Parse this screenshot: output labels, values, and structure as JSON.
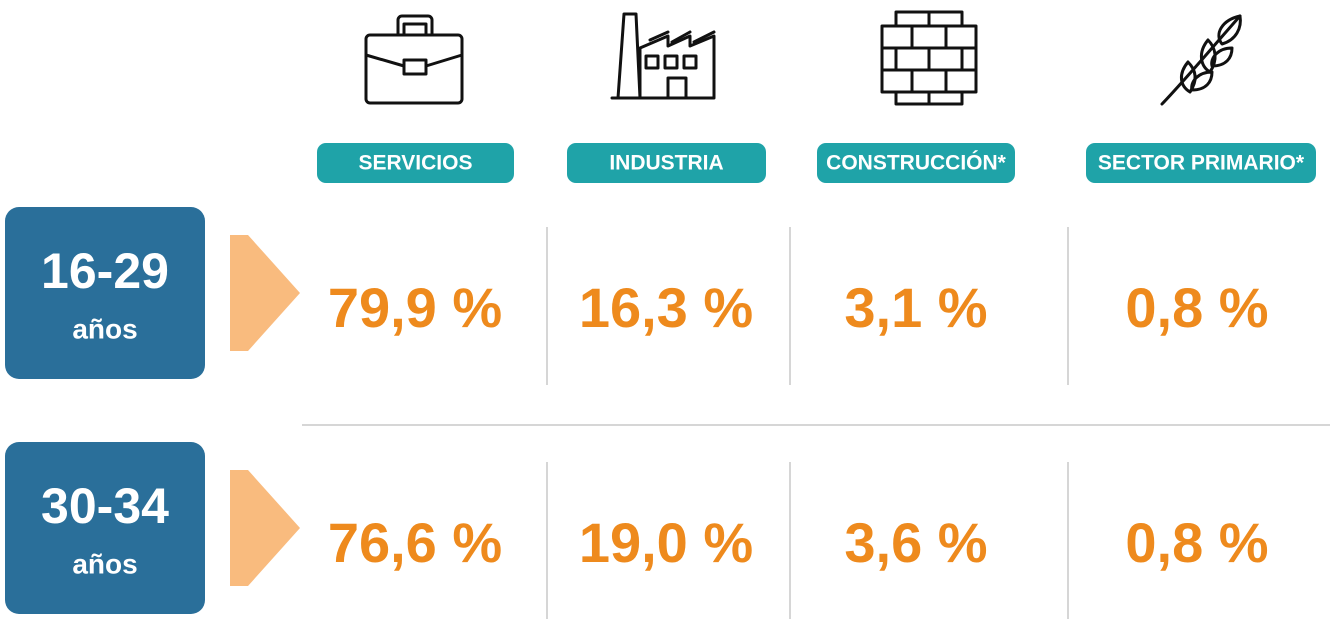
{
  "columns": [
    {
      "label": "SERVICIOS"
    },
    {
      "label": "INDUSTRIA"
    },
    {
      "label": "CONSTRUCCIÓN*"
    },
    {
      "label": "SECTOR PRIMARIO*"
    }
  ],
  "rows": [
    {
      "age": "16-29",
      "unit": "años",
      "values": [
        "79,9 %",
        "16,3 %",
        "3,1 %",
        "0,8 %"
      ]
    },
    {
      "age": "30-34",
      "unit": "años",
      "values": [
        "76,6 %",
        "19,0 %",
        "3,6 %",
        "0,8 %"
      ]
    }
  ]
}
